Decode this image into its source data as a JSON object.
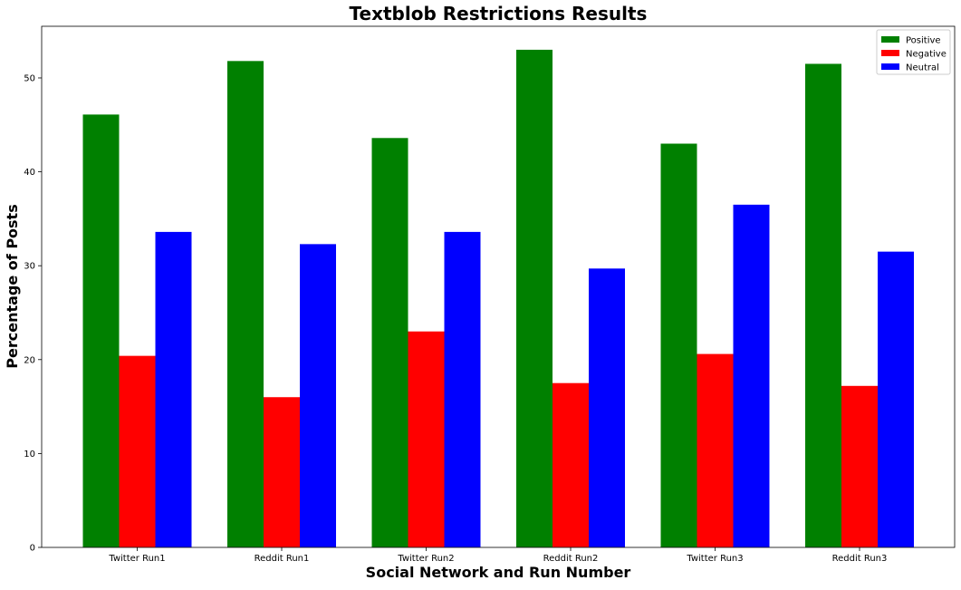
{
  "chart_data": {
    "type": "bar",
    "title": "Textblob Restrictions Results",
    "xlabel": "Social Network and Run Number",
    "ylabel": "Percentage of Posts",
    "categories": [
      "Twitter Run1",
      "Reddit Run1",
      "Twitter Run2",
      "Reddit Run2",
      "Twitter Run3",
      "Reddit Run3"
    ],
    "series": [
      {
        "name": "Positive",
        "color": "#008000",
        "values": [
          46.1,
          51.8,
          43.6,
          53.0,
          43.0,
          51.5
        ]
      },
      {
        "name": "Negative",
        "color": "#ff0000",
        "values": [
          20.4,
          16.0,
          23.0,
          17.5,
          20.6,
          17.2
        ]
      },
      {
        "name": "Neutral",
        "color": "#0000ff",
        "values": [
          33.6,
          32.3,
          33.6,
          29.7,
          36.5,
          31.5
        ]
      }
    ],
    "ylim": [
      0,
      55.5
    ],
    "yticks": [
      0,
      10,
      20,
      30,
      40,
      50
    ],
    "legend_position": "top-right",
    "grid": false
  }
}
